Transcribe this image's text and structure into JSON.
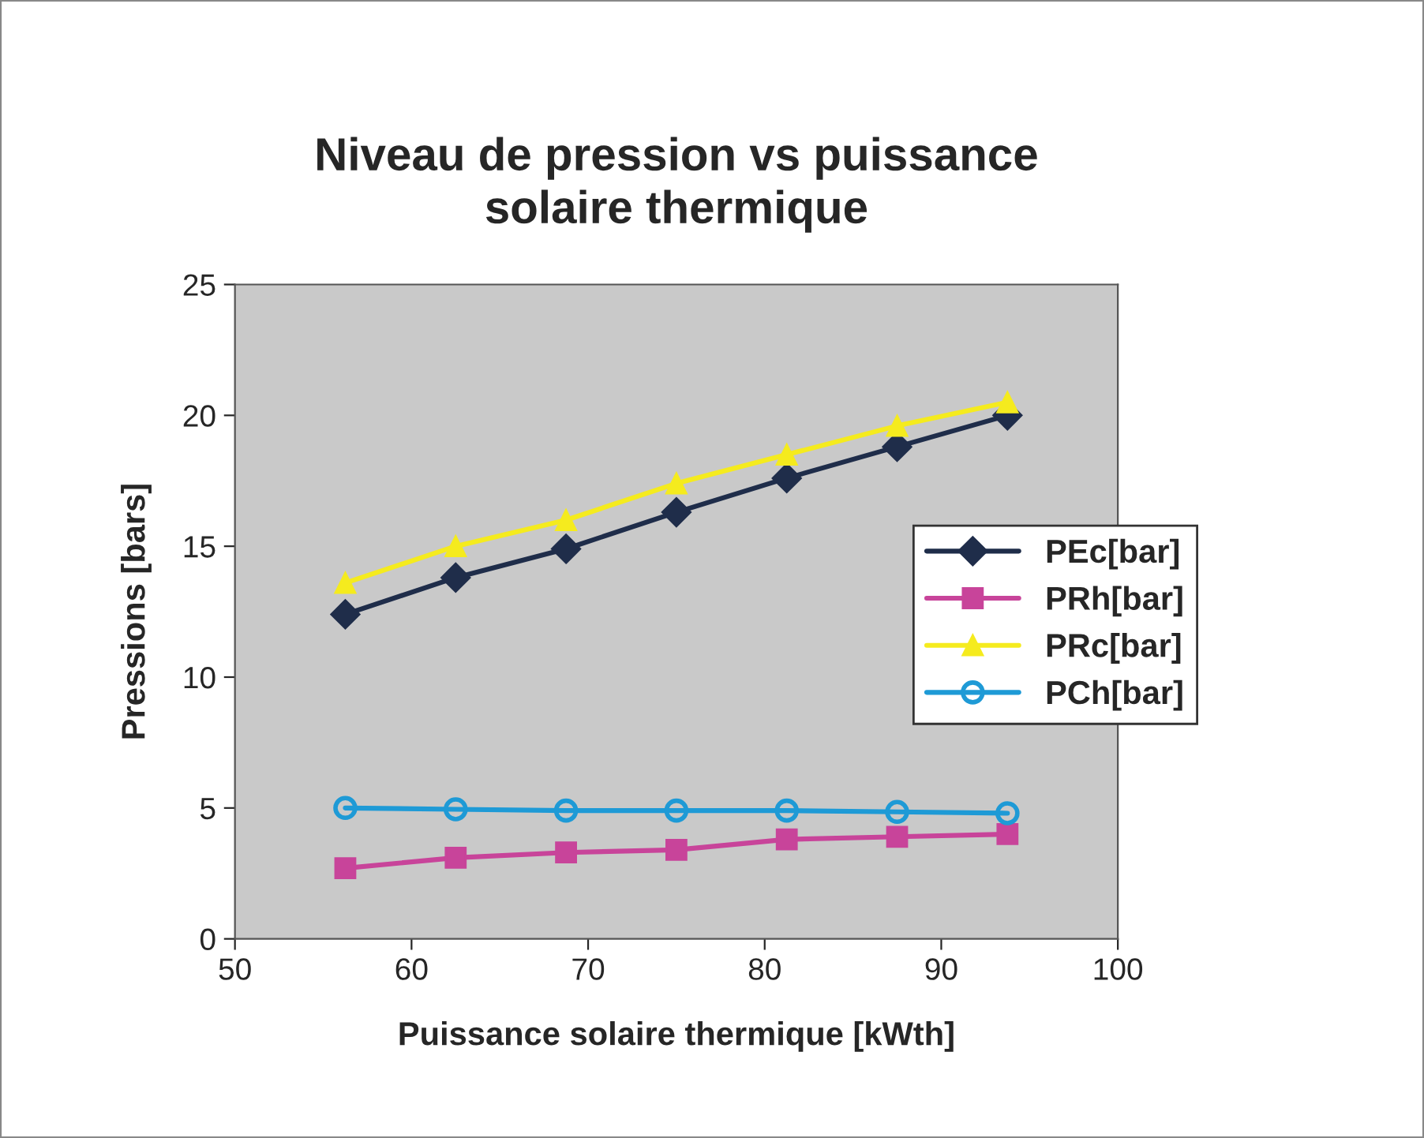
{
  "chart_data": {
    "type": "line",
    "title": "Niveau de pression vs puissance\nsolaire thermique",
    "xlabel": "Puissance solaire thermique [kWth]",
    "ylabel": "Pressions [bars]",
    "x": [
      56.25,
      62.5,
      68.75,
      75,
      81.25,
      87.5,
      93.75
    ],
    "series": [
      {
        "name": "PEc[bar]",
        "color": "#1f2d4a",
        "marker": "diamond",
        "values": [
          12.4,
          13.8,
          14.9,
          16.3,
          17.6,
          18.8,
          20.0
        ]
      },
      {
        "name": "PRh[bar]",
        "color": "#c8449a",
        "marker": "square",
        "values": [
          2.7,
          3.1,
          3.3,
          3.4,
          3.8,
          3.9,
          4.0
        ]
      },
      {
        "name": "PRc[bar]",
        "color": "#f5eb1e",
        "marker": "triangle",
        "values": [
          13.6,
          15.0,
          16.0,
          17.4,
          18.5,
          19.6,
          20.5
        ]
      },
      {
        "name": "PCh[bar]",
        "color": "#1e9ad6",
        "marker": "circle",
        "values": [
          5.0,
          4.95,
          4.9,
          4.9,
          4.9,
          4.85,
          4.8
        ]
      }
    ],
    "xlim": [
      50,
      100
    ],
    "xticks": [
      50,
      60,
      70,
      80,
      90,
      100
    ],
    "ylim": [
      0,
      25
    ],
    "yticks": [
      0,
      5,
      10,
      15,
      20,
      25
    ],
    "legend": "right",
    "line_style": "solid"
  }
}
